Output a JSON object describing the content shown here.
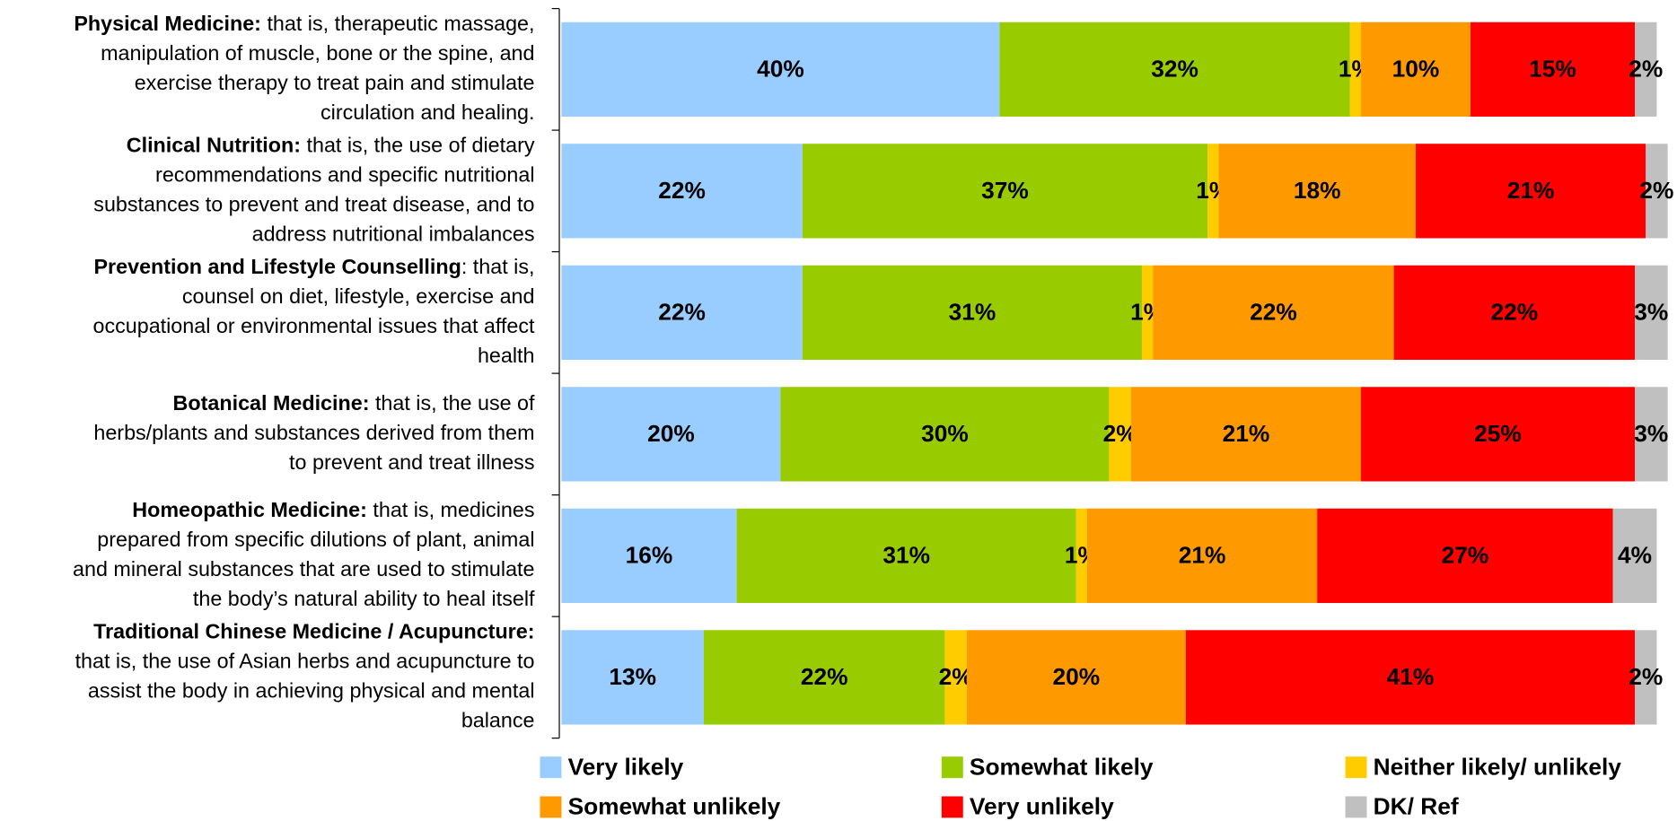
{
  "chart_data": {
    "type": "stacked-barh",
    "categories": [
      "Physical Medicine:",
      "Clinical Nutrition:",
      "Prevention and Lifestyle Counselling",
      "Botanical Medicine:",
      "Homeopathic Medicine:",
      "Traditional Chinese Medicine / Acupuncture:"
    ],
    "descriptions": [
      [
        " that is, therapeutic massage,",
        "manipulation of muscle, bone or the spine, and",
        "exercise therapy to treat pain and stimulate",
        "circulation and healing."
      ],
      [
        " that is, the use of dietary",
        "recommendations and specific nutritional",
        "substances to prevent and treat disease, and to",
        "address nutritional imbalances"
      ],
      [
        ": that is,",
        "counsel on diet, lifestyle, exercise and",
        "occupational or environmental issues that affect",
        "health"
      ],
      [
        " that is, the use of",
        "herbs/plants and substances derived from them",
        "to prevent and treat illness"
      ],
      [
        " that is, medicines",
        "prepared from specific dilutions of plant, animal",
        "and mineral substances that are used to stimulate",
        "the body’s natural ability to heal itself"
      ],
      [
        "that is, the use of Asian herbs and acupuncture to",
        "assist the body in achieving physical and mental",
        "balance"
      ]
    ],
    "xlim": [
      0,
      100
    ],
    "series": [
      {
        "name": "Very likely",
        "color": "#99ccff",
        "values": [
          40,
          22,
          22,
          20,
          16,
          13
        ],
        "value_labels": [
          "40%",
          "22%",
          "22%",
          "20%",
          "16%",
          "13%"
        ]
      },
      {
        "name": "Somewhat likely",
        "color": "#99cc00",
        "values": [
          32,
          37,
          31,
          30,
          31,
          22
        ],
        "value_labels": [
          "32%",
          "37%",
          "31%",
          "30%",
          "31%",
          "22%"
        ]
      },
      {
        "name": "Neither likely/ unlikely",
        "color": "#ffcc00",
        "values": [
          1,
          1,
          1,
          2,
          1,
          2
        ],
        "value_labels": [
          "1%",
          "1%",
          "1%",
          "2%",
          "1%",
          "2%"
        ]
      },
      {
        "name": "Somewhat unlikely",
        "color": "#ff9900",
        "values": [
          10,
          18,
          22,
          21,
          21,
          20
        ],
        "value_labels": [
          "10%",
          "18%",
          "22%",
          "21%",
          "21%",
          "20%"
        ]
      },
      {
        "name": "Very unlikely",
        "color": "#ff0000",
        "values": [
          15,
          21,
          22,
          25,
          27,
          41
        ],
        "value_labels": [
          "15%",
          "21%",
          "22%",
          "25%",
          "27%",
          "41%"
        ]
      },
      {
        "name": "DK/ Ref",
        "color": "#c0c0c0",
        "values": [
          2,
          2,
          3,
          3,
          4,
          2
        ],
        "value_labels": [
          "2%",
          "2%",
          "3%",
          "3%",
          "4%",
          "2%"
        ]
      }
    ]
  }
}
